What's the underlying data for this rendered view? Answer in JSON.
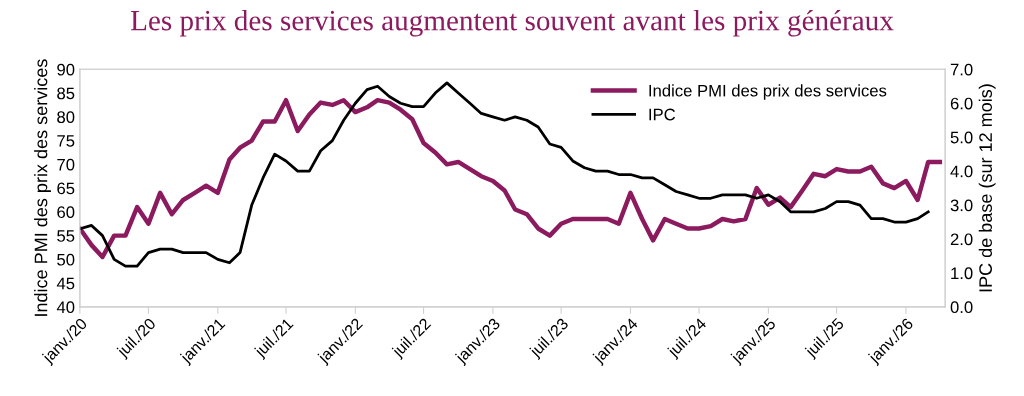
{
  "chart_data": {
    "type": "line",
    "title": "Les prix des services augmentent souvent avant les prix généraux",
    "ylabel": "Indice PMI des prix des services",
    "y2label": "IPC de base (sur 12 mois)",
    "xlim": [
      "2020-01-01",
      "2026-04-15"
    ],
    "xticks": [
      {
        "value": "2020-01",
        "label": "janv./20"
      },
      {
        "value": "2020-07",
        "label": "juil./20"
      },
      {
        "value": "2021-01",
        "label": "janv./21"
      },
      {
        "value": "2021-07",
        "label": "juil./21"
      },
      {
        "value": "2022-01",
        "label": "janv./22"
      },
      {
        "value": "2022-07",
        "label": "juil./22"
      },
      {
        "value": "2023-01",
        "label": "janv./23"
      },
      {
        "value": "2023-07",
        "label": "juil./23"
      },
      {
        "value": "2024-01",
        "label": "janv./24"
      },
      {
        "value": "2024-07",
        "label": "juil./24"
      },
      {
        "value": "2025-01",
        "label": "janv./25"
      },
      {
        "value": "2025-07",
        "label": "juil./25"
      },
      {
        "value": "2026-01",
        "label": "janv./26"
      }
    ],
    "ylim": [
      40,
      90
    ],
    "yticks": [
      40,
      45,
      50,
      55,
      60,
      65,
      70,
      75,
      80,
      85,
      90
    ],
    "y2lim": [
      0,
      7
    ],
    "y2ticks": [
      {
        "value": 0,
        "label": "0.0"
      },
      {
        "value": 1,
        "label": "1.0"
      },
      {
        "value": 2,
        "label": "2.0"
      },
      {
        "value": 3,
        "label": "3.0"
      },
      {
        "value": 4,
        "label": "4.0"
      },
      {
        "value": 5,
        "label": "5.0"
      },
      {
        "value": 6,
        "label": "6.0"
      },
      {
        "value": 7,
        "label": "7.0"
      }
    ],
    "legend": "top right",
    "series": [
      {
        "name": "Indice PMI des prix des services",
        "color": "#8b1a5f",
        "axis": "y",
        "x": [
          "2020-01",
          "2020-02",
          "2020-03",
          "2020-04",
          "2020-05",
          "2020-06",
          "2020-07",
          "2020-08",
          "2020-09",
          "2020-10",
          "2020-11",
          "2020-12",
          "2021-01",
          "2021-02",
          "2021-03",
          "2021-04",
          "2021-05",
          "2021-06",
          "2021-07",
          "2021-08",
          "2021-09",
          "2021-10",
          "2021-11",
          "2021-12",
          "2022-01",
          "2022-02",
          "2022-03",
          "2022-04",
          "2022-05",
          "2022-06",
          "2022-07",
          "2022-08",
          "2022-09",
          "2022-10",
          "2022-11",
          "2022-12",
          "2023-01",
          "2023-02",
          "2023-03",
          "2023-04",
          "2023-05",
          "2023-06",
          "2023-07",
          "2023-08",
          "2023-09",
          "2023-10",
          "2023-11",
          "2023-12",
          "2024-01",
          "2024-02",
          "2024-03",
          "2024-04",
          "2024-05",
          "2024-06",
          "2024-07",
          "2024-08",
          "2024-09",
          "2024-10",
          "2024-11",
          "2024-12",
          "2025-01",
          "2025-02",
          "2025-03",
          "2025-04",
          "2025-05",
          "2025-06",
          "2025-07",
          "2025-08",
          "2025-09",
          "2025-10",
          "2025-11",
          "2025-12",
          "2026-01",
          "2026-02",
          "2026-03",
          "2026-04"
        ],
        "values": [
          56.5,
          53,
          50.5,
          55,
          55,
          61,
          57.5,
          64,
          59.5,
          62.5,
          64,
          65.5,
          64,
          71,
          73.5,
          75,
          79,
          79,
          83.5,
          77,
          80.5,
          83,
          82.5,
          83.5,
          81,
          82,
          83.5,
          83,
          81.5,
          79.5,
          74.5,
          72.5,
          70,
          70.5,
          69,
          67.5,
          66.5,
          64.5,
          60.5,
          59.5,
          56.5,
          55,
          57.5,
          58.5,
          58.5,
          58.5,
          58.5,
          57.5,
          64,
          58.5,
          54,
          58.5,
          57.5,
          56.5,
          56.5,
          57,
          58.5,
          58,
          58.5,
          65,
          61.5,
          63,
          61,
          64.5,
          68,
          67.5,
          69,
          68.5,
          68.5,
          69.5,
          66,
          65,
          66.5,
          62.5,
          70.5,
          70.5
        ]
      },
      {
        "name": "IPC",
        "color": "#000000",
        "axis": "y2",
        "x": [
          "2020-01",
          "2020-02",
          "2020-03",
          "2020-04",
          "2020-05",
          "2020-06",
          "2020-07",
          "2020-08",
          "2020-09",
          "2020-10",
          "2020-11",
          "2020-12",
          "2021-01",
          "2021-02",
          "2021-03",
          "2021-04",
          "2021-05",
          "2021-06",
          "2021-07",
          "2021-08",
          "2021-09",
          "2021-10",
          "2021-11",
          "2021-12",
          "2022-01",
          "2022-02",
          "2022-03",
          "2022-04",
          "2022-05",
          "2022-06",
          "2022-07",
          "2022-08",
          "2022-09",
          "2022-10",
          "2022-11",
          "2022-12",
          "2023-01",
          "2023-02",
          "2023-03",
          "2023-04",
          "2023-05",
          "2023-06",
          "2023-07",
          "2023-08",
          "2023-09",
          "2023-10",
          "2023-11",
          "2023-12",
          "2024-01",
          "2024-02",
          "2024-03",
          "2024-04",
          "2024-05",
          "2024-06",
          "2024-07",
          "2024-08",
          "2024-09",
          "2024-10",
          "2024-11",
          "2024-12",
          "2025-01",
          "2025-02",
          "2025-03",
          "2025-04",
          "2025-05",
          "2025-06",
          "2025-07",
          "2025-08",
          "2025-09",
          "2025-10",
          "2025-11",
          "2025-12",
          "2026-01",
          "2026-02",
          "2026-03"
        ],
        "values": [
          2.3,
          2.4,
          2.1,
          1.4,
          1.2,
          1.2,
          1.6,
          1.7,
          1.7,
          1.6,
          1.6,
          1.6,
          1.4,
          1.3,
          1.6,
          3.0,
          3.8,
          4.5,
          4.3,
          4.0,
          4.0,
          4.6,
          4.9,
          5.5,
          6.0,
          6.4,
          6.5,
          6.2,
          6.0,
          5.9,
          5.9,
          6.3,
          6.6,
          6.3,
          6.0,
          5.7,
          5.6,
          5.5,
          5.6,
          5.5,
          5.3,
          4.8,
          4.7,
          4.3,
          4.1,
          4.0,
          4.0,
          3.9,
          3.9,
          3.8,
          3.8,
          3.6,
          3.4,
          3.3,
          3.2,
          3.2,
          3.3,
          3.3,
          3.3,
          3.2,
          3.3,
          3.1,
          2.8,
          2.8,
          2.8,
          2.9,
          3.1,
          3.1,
          3.0,
          2.6,
          2.6,
          2.5,
          2.5,
          2.6,
          2.8
        ]
      }
    ]
  }
}
